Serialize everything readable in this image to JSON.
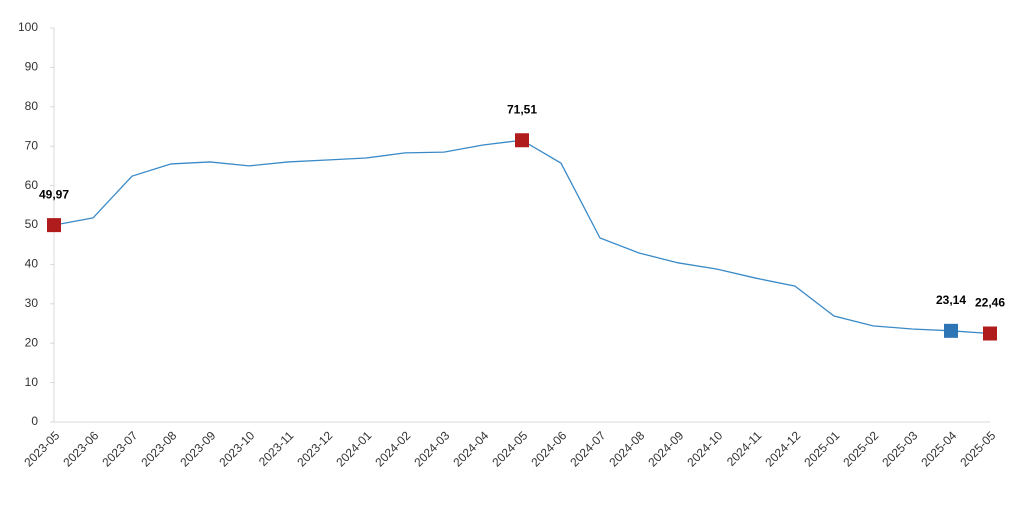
{
  "chart_data": {
    "type": "line",
    "categories": [
      "2023-05",
      "2023-06",
      "2023-07",
      "2023-08",
      "2023-09",
      "2023-10",
      "2023-11",
      "2023-12",
      "2024-01",
      "2024-02",
      "2024-03",
      "2024-04",
      "2024-05",
      "2024-06",
      "2024-07",
      "2024-08",
      "2024-09",
      "2024-10",
      "2024-11",
      "2024-12",
      "2025-01",
      "2025-02",
      "2025-03",
      "2025-04",
      "2025-05"
    ],
    "series": [
      {
        "color": "#3a8ac8",
        "values": [
          49.97,
          51.8,
          62.4,
          65.5,
          66.0,
          65.0,
          66.0,
          66.5,
          67.0,
          68.3,
          68.5,
          70.3,
          71.51,
          65.7,
          46.7,
          42.9,
          40.4,
          38.8,
          36.5,
          34.5,
          26.9,
          24.4,
          23.6,
          23.14,
          22.46
        ],
        "value_labels": [
          "49,97",
          null,
          null,
          null,
          null,
          null,
          null,
          null,
          null,
          null,
          null,
          null,
          "71,51",
          null,
          null,
          null,
          null,
          null,
          null,
          null,
          null,
          null,
          null,
          "23,14",
          "22,46"
        ],
        "marker_colors": [
          "#b01c1c",
          null,
          null,
          null,
          null,
          null,
          null,
          null,
          null,
          null,
          null,
          null,
          "#b01c1c",
          null,
          null,
          null,
          null,
          null,
          null,
          null,
          null,
          null,
          null,
          "#2e75b6",
          "#b01c1c"
        ]
      }
    ],
    "ylim": [
      0,
      100
    ],
    "yticks": [
      0,
      10,
      20,
      30,
      40,
      50,
      60,
      70,
      80,
      90,
      100
    ],
    "grid": false
  }
}
